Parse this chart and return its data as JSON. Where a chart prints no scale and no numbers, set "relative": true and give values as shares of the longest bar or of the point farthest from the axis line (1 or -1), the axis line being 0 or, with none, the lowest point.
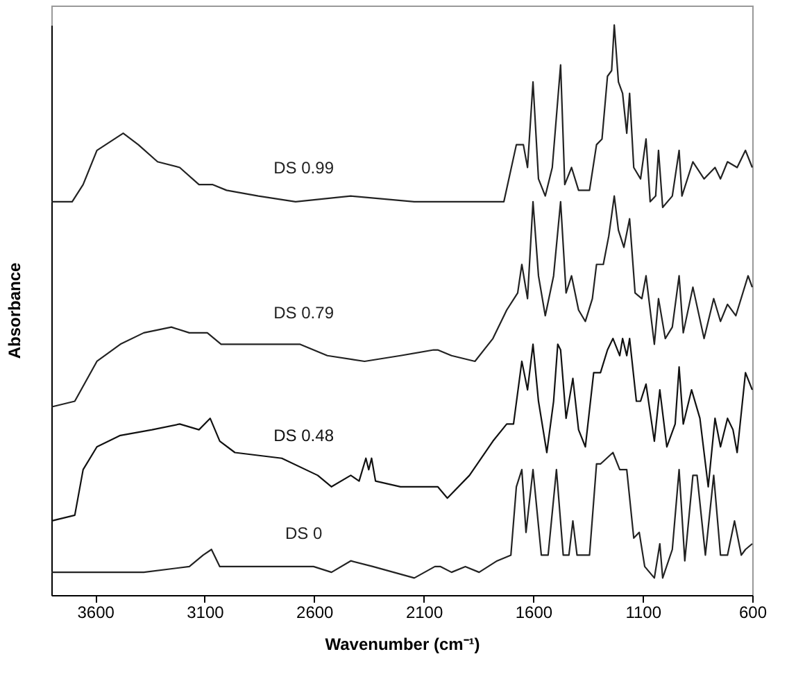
{
  "chart_data": {
    "type": "line",
    "relative": true,
    "xlabel": "Wavenumber (cm⁻¹)",
    "ylabel": "Absorbance",
    "xlim": [
      3800,
      600
    ],
    "xticks": [
      3600,
      3100,
      2600,
      2100,
      1600,
      1100,
      600
    ],
    "grid": false,
    "legend": false,
    "marker": "none",
    "line_style": "solid",
    "series": [
      {
        "name": "DS  0.99",
        "color": "#222222",
        "x": [
          3800,
          3705,
          3655,
          3592,
          3472,
          3403,
          3315,
          3214,
          3126,
          3063,
          3000,
          2855,
          2685,
          2433,
          2143,
          2036,
          1734,
          1677,
          1645,
          1626,
          1601,
          1576,
          1545,
          1513,
          1475,
          1456,
          1425,
          1393,
          1343,
          1311,
          1286,
          1261,
          1242,
          1230,
          1211,
          1192,
          1173,
          1160,
          1141,
          1110,
          1085,
          1066,
          1041,
          1028,
          1009,
          965,
          934,
          921,
          871,
          820,
          770,
          745,
          713,
          669,
          631,
          600
        ],
        "values": [
          0.69,
          0.69,
          0.72,
          0.78,
          0.81,
          0.79,
          0.76,
          0.75,
          0.72,
          0.72,
          0.71,
          0.7,
          0.69,
          0.7,
          0.69,
          0.69,
          0.69,
          0.79,
          0.79,
          0.75,
          0.9,
          0.73,
          0.7,
          0.75,
          0.93,
          0.72,
          0.75,
          0.71,
          0.71,
          0.79,
          0.8,
          0.91,
          0.92,
          1.0,
          0.9,
          0.88,
          0.81,
          0.88,
          0.75,
          0.73,
          0.8,
          0.69,
          0.7,
          0.78,
          0.68,
          0.7,
          0.78,
          0.7,
          0.76,
          0.73,
          0.75,
          0.73,
          0.76,
          0.75,
          0.78,
          0.75
        ]
      },
      {
        "name": "DS  0.79",
        "color": "#222222",
        "x": [
          3800,
          3693,
          3592,
          3485,
          3378,
          3252,
          3170,
          3088,
          3025,
          2962,
          2811,
          2666,
          2540,
          2370,
          2206,
          2055,
          2036,
          1973,
          1866,
          1784,
          1721,
          1671,
          1652,
          1626,
          1601,
          1576,
          1545,
          1507,
          1475,
          1450,
          1425,
          1393,
          1362,
          1330,
          1311,
          1280,
          1255,
          1230,
          1211,
          1186,
          1160,
          1135,
          1104,
          1085,
          1047,
          1028,
          997,
          965,
          934,
          915,
          871,
          820,
          776,
          745,
          713,
          675,
          619,
          600
        ],
        "values": [
          0.33,
          0.34,
          0.41,
          0.44,
          0.46,
          0.47,
          0.46,
          0.46,
          0.44,
          0.44,
          0.44,
          0.44,
          0.42,
          0.41,
          0.42,
          0.43,
          0.43,
          0.42,
          0.41,
          0.45,
          0.5,
          0.53,
          0.58,
          0.52,
          0.69,
          0.56,
          0.49,
          0.56,
          0.69,
          0.53,
          0.56,
          0.5,
          0.48,
          0.52,
          0.58,
          0.58,
          0.63,
          0.7,
          0.64,
          0.61,
          0.66,
          0.53,
          0.52,
          0.56,
          0.44,
          0.52,
          0.45,
          0.47,
          0.56,
          0.46,
          0.54,
          0.45,
          0.52,
          0.48,
          0.51,
          0.49,
          0.56,
          0.54
        ]
      },
      {
        "name": "DS  0.48",
        "color": "#111111",
        "x": [
          3800,
          3693,
          3655,
          3592,
          3485,
          3340,
          3214,
          3126,
          3075,
          3031,
          2962,
          2748,
          2584,
          2521,
          2433,
          2395,
          2364,
          2351,
          2338,
          2320,
          2206,
          2055,
          2036,
          1992,
          1891,
          1784,
          1721,
          1690,
          1652,
          1626,
          1601,
          1576,
          1538,
          1507,
          1488,
          1475,
          1450,
          1419,
          1393,
          1362,
          1324,
          1293,
          1261,
          1236,
          1205,
          1192,
          1173,
          1160,
          1129,
          1110,
          1085,
          1047,
          1022,
          990,
          952,
          934,
          915,
          877,
          839,
          801,
          770,
          745,
          713,
          688,
          669,
          631,
          600
        ],
        "values": [
          0.13,
          0.14,
          0.22,
          0.26,
          0.28,
          0.29,
          0.3,
          0.29,
          0.31,
          0.27,
          0.25,
          0.24,
          0.21,
          0.19,
          0.21,
          0.2,
          0.24,
          0.22,
          0.24,
          0.2,
          0.19,
          0.19,
          0.19,
          0.17,
          0.21,
          0.27,
          0.3,
          0.3,
          0.41,
          0.36,
          0.44,
          0.34,
          0.25,
          0.34,
          0.44,
          0.43,
          0.31,
          0.38,
          0.29,
          0.26,
          0.39,
          0.39,
          0.43,
          0.45,
          0.42,
          0.45,
          0.42,
          0.45,
          0.34,
          0.34,
          0.37,
          0.27,
          0.36,
          0.26,
          0.3,
          0.4,
          0.3,
          0.36,
          0.31,
          0.19,
          0.31,
          0.26,
          0.31,
          0.29,
          0.25,
          0.39,
          0.36
        ]
      },
      {
        "name": "DS  0",
        "color": "#222222",
        "x": [
          3800,
          3378,
          3170,
          3107,
          3069,
          3031,
          2855,
          2603,
          2521,
          2433,
          2332,
          2143,
          2049,
          2023,
          1973,
          1910,
          1847,
          1765,
          1702,
          1677,
          1652,
          1633,
          1601,
          1563,
          1532,
          1494,
          1463,
          1437,
          1419,
          1400,
          1343,
          1311,
          1293,
          1236,
          1205,
          1173,
          1141,
          1116,
          1091,
          1047,
          1022,
          1009,
          965,
          934,
          908,
          871,
          852,
          814,
          776,
          745,
          713,
          681,
          650,
          631,
          600
        ],
        "values": [
          0.04,
          0.04,
          0.05,
          0.07,
          0.08,
          0.05,
          0.05,
          0.05,
          0.04,
          0.06,
          0.05,
          0.03,
          0.05,
          0.05,
          0.04,
          0.05,
          0.04,
          0.06,
          0.07,
          0.19,
          0.22,
          0.11,
          0.22,
          0.07,
          0.07,
          0.22,
          0.07,
          0.07,
          0.13,
          0.07,
          0.07,
          0.23,
          0.23,
          0.25,
          0.22,
          0.22,
          0.1,
          0.11,
          0.05,
          0.03,
          0.09,
          0.03,
          0.08,
          0.22,
          0.06,
          0.21,
          0.21,
          0.07,
          0.21,
          0.07,
          0.07,
          0.13,
          0.07,
          0.08,
          0.09
        ]
      }
    ]
  }
}
